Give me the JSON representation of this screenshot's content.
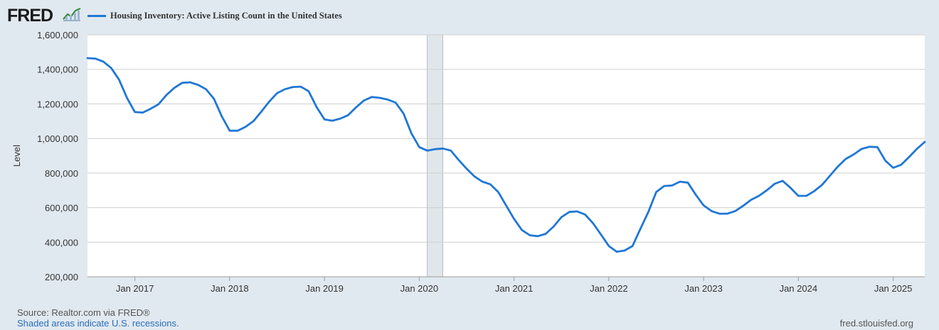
{
  "header": {
    "logo_text": "FRED",
    "logo_icon": "line-graph-icon",
    "legend_label": "Housing Inventory: Active Listing Count in the United States"
  },
  "footer": {
    "source": "Source: Realtor.com via FRED®",
    "recession_note": "Shaded areas indicate U.S. recessions.",
    "site": "fred.stlouisfed.org"
  },
  "colors": {
    "series": "#1f77d6",
    "recession": "#e1e6ea",
    "background": "#e1e9f0",
    "plot": "#ffffff"
  },
  "chart_data": {
    "type": "line",
    "title": "",
    "xlabel": "",
    "ylabel": "Level",
    "ylim": [
      200000,
      1600000
    ],
    "yticks": [
      200000,
      400000,
      600000,
      800000,
      1000000,
      1200000,
      1400000,
      1600000
    ],
    "ytick_labels": [
      "200,000",
      "400,000",
      "600,000",
      "800,000",
      "1,000,000",
      "1,200,000",
      "1,400,000",
      "1,600,000"
    ],
    "xlim": [
      "2016-07",
      "2025-05"
    ],
    "xticks": [
      "2017-01",
      "2018-01",
      "2019-01",
      "2020-01",
      "2021-01",
      "2022-01",
      "2023-01",
      "2024-01",
      "2025-01"
    ],
    "xtick_labels": [
      "Jan 2017",
      "Jan 2018",
      "Jan 2019",
      "Jan 2020",
      "Jan 2021",
      "Jan 2022",
      "Jan 2023",
      "Jan 2024",
      "Jan 2025"
    ],
    "grid": true,
    "legend": "top-left",
    "recessions": [
      {
        "start": "2020-02",
        "end": "2020-04"
      }
    ],
    "series": [
      {
        "name": "Housing Inventory: Active Listing Count in the United States",
        "x": [
          "2016-07",
          "2016-08",
          "2016-09",
          "2016-10",
          "2016-11",
          "2016-12",
          "2017-01",
          "2017-02",
          "2017-03",
          "2017-04",
          "2017-05",
          "2017-06",
          "2017-07",
          "2017-08",
          "2017-09",
          "2017-10",
          "2017-11",
          "2017-12",
          "2018-01",
          "2018-02",
          "2018-03",
          "2018-04",
          "2018-05",
          "2018-06",
          "2018-07",
          "2018-08",
          "2018-09",
          "2018-10",
          "2018-11",
          "2018-12",
          "2019-01",
          "2019-02",
          "2019-03",
          "2019-04",
          "2019-05",
          "2019-06",
          "2019-07",
          "2019-08",
          "2019-09",
          "2019-10",
          "2019-11",
          "2019-12",
          "2020-01",
          "2020-02",
          "2020-03",
          "2020-04",
          "2020-05",
          "2020-06",
          "2020-07",
          "2020-08",
          "2020-09",
          "2020-10",
          "2020-11",
          "2020-12",
          "2021-01",
          "2021-02",
          "2021-03",
          "2021-04",
          "2021-05",
          "2021-06",
          "2021-07",
          "2021-08",
          "2021-09",
          "2021-10",
          "2021-11",
          "2021-12",
          "2022-01",
          "2022-02",
          "2022-03",
          "2022-04",
          "2022-05",
          "2022-06",
          "2022-07",
          "2022-08",
          "2022-09",
          "2022-10",
          "2022-11",
          "2022-12",
          "2023-01",
          "2023-02",
          "2023-03",
          "2023-04",
          "2023-05",
          "2023-06",
          "2023-07",
          "2023-08",
          "2023-09",
          "2023-10",
          "2023-11",
          "2023-12",
          "2024-01",
          "2024-02",
          "2024-03",
          "2024-04",
          "2024-05",
          "2024-06",
          "2024-07",
          "2024-08",
          "2024-09",
          "2024-10",
          "2024-11",
          "2024-12",
          "2025-01",
          "2025-02",
          "2025-03",
          "2025-04",
          "2025-05"
        ],
        "values": [
          1465000,
          1462000,
          1445000,
          1408000,
          1340000,
          1235000,
          1153000,
          1150000,
          1172000,
          1198000,
          1252000,
          1293000,
          1322000,
          1325000,
          1310000,
          1285000,
          1230000,
          1128000,
          1045000,
          1045000,
          1067000,
          1100000,
          1155000,
          1213000,
          1262000,
          1285000,
          1298000,
          1300000,
          1273000,
          1182000,
          1110000,
          1103000,
          1115000,
          1135000,
          1180000,
          1220000,
          1240000,
          1235000,
          1225000,
          1208000,
          1145000,
          1030000,
          950000,
          930000,
          938000,
          942000,
          930000,
          875000,
          825000,
          780000,
          750000,
          735000,
          690000,
          612000,
          535000,
          470000,
          440000,
          435000,
          448000,
          490000,
          545000,
          575000,
          578000,
          560000,
          510000,
          445000,
          378000,
          345000,
          352000,
          378000,
          478000,
          575000,
          690000,
          725000,
          728000,
          750000,
          745000,
          675000,
          613000,
          580000,
          565000,
          565000,
          580000,
          610000,
          645000,
          668000,
          700000,
          738000,
          755000,
          715000,
          668000,
          668000,
          695000,
          732000,
          785000,
          838000,
          882000,
          908000,
          940000,
          952000,
          950000,
          872000,
          830000,
          848000,
          892000,
          940000,
          980000
        ]
      }
    ]
  }
}
